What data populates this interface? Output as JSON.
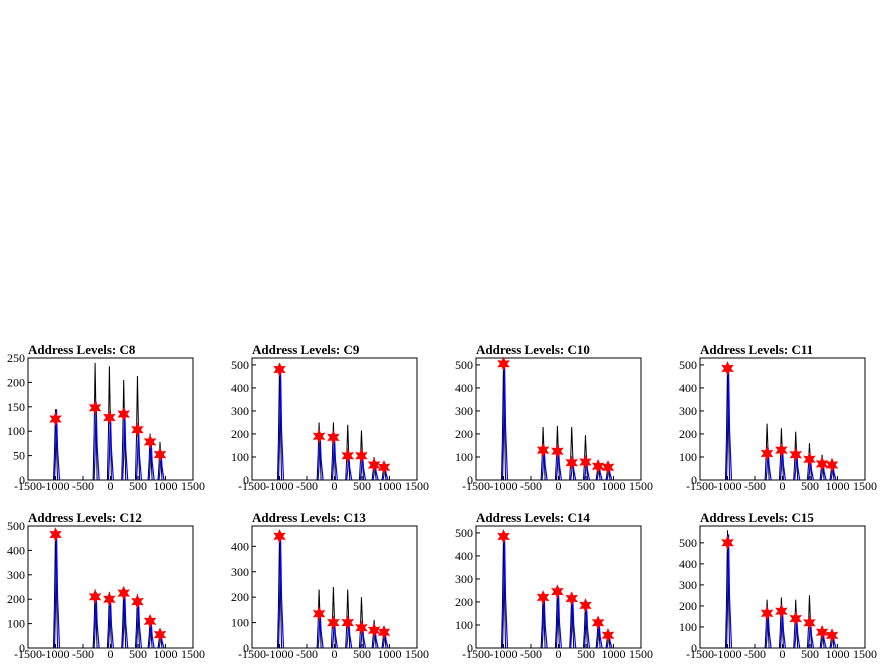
{
  "chart_data": [
    {
      "type": "histogram",
      "title": "Address Levels: C8",
      "xlim": [
        -1500,
        1500
      ],
      "ylim": [
        0,
        250
      ],
      "xticks": [
        -1500,
        -1000,
        -500,
        0,
        500,
        1000,
        1500
      ],
      "yticks": [
        0,
        50,
        100,
        150,
        200,
        250
      ],
      "black_peaks": [
        {
          "x": -1000,
          "y": 145
        },
        {
          "x": -280,
          "y": 240
        },
        {
          "x": -20,
          "y": 233
        },
        {
          "x": 240,
          "y": 205
        },
        {
          "x": 490,
          "y": 213
        },
        {
          "x": 720,
          "y": 95
        },
        {
          "x": 900,
          "y": 78
        }
      ],
      "blue_peaks": [
        {
          "x": -1000,
          "y": 145
        },
        {
          "x": -280,
          "y": 160
        },
        {
          "x": -20,
          "y": 140
        },
        {
          "x": 240,
          "y": 145
        },
        {
          "x": 490,
          "y": 110
        },
        {
          "x": 720,
          "y": 85
        },
        {
          "x": 900,
          "y": 60
        }
      ],
      "markers": [
        {
          "x": -1000,
          "y": 125
        },
        {
          "x": -280,
          "y": 148
        },
        {
          "x": -20,
          "y": 128
        },
        {
          "x": 240,
          "y": 135
        },
        {
          "x": 490,
          "y": 103
        },
        {
          "x": 720,
          "y": 78
        },
        {
          "x": 900,
          "y": 52
        }
      ]
    },
    {
      "type": "histogram",
      "title": "Address Levels: C9",
      "xlim": [
        -1500,
        1500
      ],
      "ylim": [
        0,
        530
      ],
      "xticks": [
        -1500,
        -1000,
        -500,
        0,
        500,
        1000,
        1500
      ],
      "yticks": [
        0,
        100,
        200,
        300,
        400,
        500
      ],
      "black_peaks": [
        {
          "x": -1000,
          "y": 500
        },
        {
          "x": -280,
          "y": 250
        },
        {
          "x": -20,
          "y": 250
        },
        {
          "x": 240,
          "y": 240
        },
        {
          "x": 490,
          "y": 215
        },
        {
          "x": 720,
          "y": 100
        },
        {
          "x": 900,
          "y": 80
        }
      ],
      "blue_peaks": [
        {
          "x": -1000,
          "y": 490
        },
        {
          "x": -280,
          "y": 200
        },
        {
          "x": -20,
          "y": 200
        },
        {
          "x": 240,
          "y": 120
        },
        {
          "x": 490,
          "y": 120
        },
        {
          "x": 720,
          "y": 80
        },
        {
          "x": 900,
          "y": 65
        }
      ],
      "markers": [
        {
          "x": -1000,
          "y": 480
        },
        {
          "x": -280,
          "y": 190
        },
        {
          "x": -20,
          "y": 185
        },
        {
          "x": 240,
          "y": 105
        },
        {
          "x": 490,
          "y": 105
        },
        {
          "x": 720,
          "y": 65
        },
        {
          "x": 900,
          "y": 55
        }
      ]
    },
    {
      "type": "histogram",
      "title": "Address Levels: C10",
      "xlim": [
        -1500,
        1500
      ],
      "ylim": [
        0,
        530
      ],
      "xticks": [
        -1500,
        -1000,
        -500,
        0,
        500,
        1000,
        1500
      ],
      "yticks": [
        0,
        100,
        200,
        300,
        400,
        500
      ],
      "black_peaks": [
        {
          "x": -1000,
          "y": 520
        },
        {
          "x": -280,
          "y": 230
        },
        {
          "x": -20,
          "y": 235
        },
        {
          "x": 240,
          "y": 230
        },
        {
          "x": 490,
          "y": 195
        },
        {
          "x": 720,
          "y": 80
        },
        {
          "x": 900,
          "y": 70
        }
      ],
      "blue_peaks": [
        {
          "x": -1000,
          "y": 515
        },
        {
          "x": -280,
          "y": 150
        },
        {
          "x": -20,
          "y": 150
        },
        {
          "x": 240,
          "y": 100
        },
        {
          "x": 490,
          "y": 100
        },
        {
          "x": 720,
          "y": 75
        },
        {
          "x": 900,
          "y": 60
        }
      ],
      "markers": [
        {
          "x": -1000,
          "y": 505
        },
        {
          "x": -280,
          "y": 130
        },
        {
          "x": -20,
          "y": 125
        },
        {
          "x": 240,
          "y": 75
        },
        {
          "x": 490,
          "y": 78
        },
        {
          "x": 720,
          "y": 60
        },
        {
          "x": 900,
          "y": 55
        }
      ]
    },
    {
      "type": "histogram",
      "title": "Address Levels: C11",
      "xlim": [
        -1500,
        1500
      ],
      "ylim": [
        0,
        530
      ],
      "xticks": [
        -1500,
        -1000,
        -500,
        0,
        500,
        1000,
        1500
      ],
      "yticks": [
        0,
        100,
        200,
        300,
        400,
        500
      ],
      "black_peaks": [
        {
          "x": -1000,
          "y": 500
        },
        {
          "x": -280,
          "y": 245
        },
        {
          "x": -20,
          "y": 225
        },
        {
          "x": 240,
          "y": 210
        },
        {
          "x": 490,
          "y": 160
        },
        {
          "x": 720,
          "y": 110
        },
        {
          "x": 900,
          "y": 85
        }
      ],
      "blue_peaks": [
        {
          "x": -1000,
          "y": 495
        },
        {
          "x": -280,
          "y": 140
        },
        {
          "x": -20,
          "y": 150
        },
        {
          "x": 240,
          "y": 130
        },
        {
          "x": 490,
          "y": 100
        },
        {
          "x": 720,
          "y": 80
        },
        {
          "x": 900,
          "y": 70
        }
      ],
      "markers": [
        {
          "x": -1000,
          "y": 485
        },
        {
          "x": -280,
          "y": 115
        },
        {
          "x": -20,
          "y": 130
        },
        {
          "x": 240,
          "y": 110
        },
        {
          "x": 490,
          "y": 90
        },
        {
          "x": 720,
          "y": 70
        },
        {
          "x": 900,
          "y": 65
        }
      ]
    },
    {
      "type": "histogram",
      "title": "Address Levels: C12",
      "xlim": [
        -1500,
        1500
      ],
      "ylim": [
        0,
        500
      ],
      "xticks": [
        -1500,
        -1000,
        -500,
        0,
        500,
        1000,
        1500
      ],
      "yticks": [
        0,
        100,
        200,
        300,
        400,
        500
      ],
      "black_peaks": [
        {
          "x": -1000,
          "y": 490
        },
        {
          "x": -280,
          "y": 240
        },
        {
          "x": -20,
          "y": 230
        },
        {
          "x": 240,
          "y": 240
        },
        {
          "x": 490,
          "y": 220
        },
        {
          "x": 720,
          "y": 120
        },
        {
          "x": 900,
          "y": 80
        }
      ],
      "blue_peaks": [
        {
          "x": -1000,
          "y": 480
        },
        {
          "x": -280,
          "y": 230
        },
        {
          "x": -20,
          "y": 215
        },
        {
          "x": 240,
          "y": 235
        },
        {
          "x": 490,
          "y": 200
        },
        {
          "x": 720,
          "y": 115
        },
        {
          "x": 900,
          "y": 65
        }
      ],
      "markers": [
        {
          "x": -1000,
          "y": 465
        },
        {
          "x": -280,
          "y": 210
        },
        {
          "x": -20,
          "y": 200
        },
        {
          "x": 240,
          "y": 225
        },
        {
          "x": 490,
          "y": 190
        },
        {
          "x": 720,
          "y": 110
        },
        {
          "x": 900,
          "y": 55
        }
      ]
    },
    {
      "type": "histogram",
      "title": "Address Levels: C13",
      "xlim": [
        -1500,
        1500
      ],
      "ylim": [
        0,
        480
      ],
      "xticks": [
        -1500,
        -1000,
        -500,
        0,
        500,
        1000,
        1500
      ],
      "yticks": [
        0,
        100,
        200,
        300,
        400
      ],
      "black_peaks": [
        {
          "x": -1000,
          "y": 450
        },
        {
          "x": -280,
          "y": 230
        },
        {
          "x": -20,
          "y": 240
        },
        {
          "x": 240,
          "y": 230
        },
        {
          "x": 490,
          "y": 200
        },
        {
          "x": 720,
          "y": 110
        },
        {
          "x": 900,
          "y": 80
        }
      ],
      "blue_peaks": [
        {
          "x": -1000,
          "y": 445
        },
        {
          "x": -280,
          "y": 150
        },
        {
          "x": -20,
          "y": 120
        },
        {
          "x": 240,
          "y": 120
        },
        {
          "x": 490,
          "y": 100
        },
        {
          "x": 720,
          "y": 80
        },
        {
          "x": 900,
          "y": 70
        }
      ],
      "markers": [
        {
          "x": -1000,
          "y": 440
        },
        {
          "x": -280,
          "y": 135
        },
        {
          "x": -20,
          "y": 100
        },
        {
          "x": 240,
          "y": 100
        },
        {
          "x": 490,
          "y": 80
        },
        {
          "x": 720,
          "y": 70
        },
        {
          "x": 900,
          "y": 62
        }
      ]
    },
    {
      "type": "histogram",
      "title": "Address Levels: C14",
      "xlim": [
        -1500,
        1500
      ],
      "ylim": [
        0,
        530
      ],
      "xticks": [
        -1500,
        -1000,
        -500,
        0,
        500,
        1000,
        1500
      ],
      "yticks": [
        0,
        100,
        200,
        300,
        400,
        500
      ],
      "black_peaks": [
        {
          "x": -1000,
          "y": 500
        },
        {
          "x": -280,
          "y": 240
        },
        {
          "x": -20,
          "y": 260
        },
        {
          "x": 240,
          "y": 240
        },
        {
          "x": 490,
          "y": 200
        },
        {
          "x": 720,
          "y": 120
        },
        {
          "x": 900,
          "y": 80
        }
      ],
      "blue_peaks": [
        {
          "x": -1000,
          "y": 495
        },
        {
          "x": -280,
          "y": 235
        },
        {
          "x": -20,
          "y": 255
        },
        {
          "x": 240,
          "y": 225
        },
        {
          "x": 490,
          "y": 195
        },
        {
          "x": 720,
          "y": 115
        },
        {
          "x": 900,
          "y": 65
        }
      ],
      "markers": [
        {
          "x": -1000,
          "y": 485
        },
        {
          "x": -280,
          "y": 220
        },
        {
          "x": -20,
          "y": 245
        },
        {
          "x": 240,
          "y": 215
        },
        {
          "x": 490,
          "y": 185
        },
        {
          "x": 720,
          "y": 110
        },
        {
          "x": 900,
          "y": 55
        }
      ]
    },
    {
      "type": "histogram",
      "title": "Address Levels: C15",
      "xlim": [
        -1500,
        1500
      ],
      "ylim": [
        0,
        580
      ],
      "xticks": [
        -1500,
        -1000,
        -500,
        0,
        500,
        1000,
        1500
      ],
      "yticks": [
        0,
        100,
        200,
        300,
        400,
        500
      ],
      "black_peaks": [
        {
          "x": -1000,
          "y": 560
        },
        {
          "x": -280,
          "y": 230
        },
        {
          "x": -20,
          "y": 240
        },
        {
          "x": 240,
          "y": 230
        },
        {
          "x": 490,
          "y": 250
        },
        {
          "x": 720,
          "y": 100
        },
        {
          "x": 900,
          "y": 85
        }
      ],
      "blue_peaks": [
        {
          "x": -1000,
          "y": 540
        },
        {
          "x": -280,
          "y": 180
        },
        {
          "x": -20,
          "y": 190
        },
        {
          "x": 240,
          "y": 150
        },
        {
          "x": 490,
          "y": 140
        },
        {
          "x": 720,
          "y": 90
        },
        {
          "x": 900,
          "y": 75
        }
      ],
      "markers": [
        {
          "x": -1000,
          "y": 500
        },
        {
          "x": -280,
          "y": 165
        },
        {
          "x": -20,
          "y": 175
        },
        {
          "x": 240,
          "y": 140
        },
        {
          "x": 490,
          "y": 120
        },
        {
          "x": 720,
          "y": 75
        },
        {
          "x": 900,
          "y": 60
        }
      ]
    }
  ],
  "colors": {
    "black_series": "#000000",
    "blue_series": "#0000ff",
    "marker": "#ff0000"
  }
}
